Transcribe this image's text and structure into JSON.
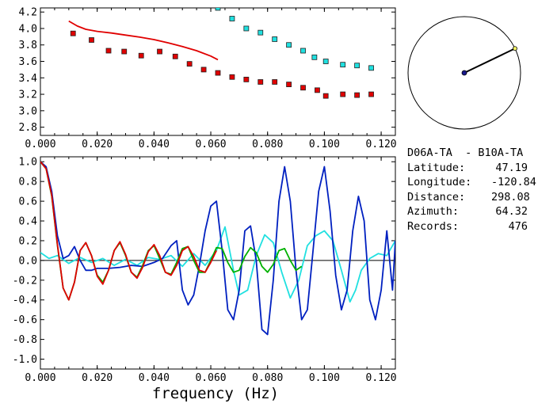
{
  "station_pair": "D06A-TA  - B10A-TA",
  "info_rows": [
    {
      "label": "Latitude:",
      "value": "47.19"
    },
    {
      "label": "Longitude:",
      "value": "-120.84"
    },
    {
      "label": "Distance:",
      "value": "298.08"
    },
    {
      "label": "Azimuth:",
      "value": "64.32"
    },
    {
      "label": "Records:",
      "value": "476"
    }
  ],
  "colors": {
    "red": "#e00000",
    "blue": "#0020c0",
    "cyan": "#20e0e0",
    "green": "#00b000",
    "compass_dot": "#1a1a8c",
    "compass_tip": "#ffff66"
  },
  "chart_data": [
    {
      "type": "scatter",
      "panel": "top",
      "xlim": [
        0.0,
        0.125
      ],
      "ylim": [
        2.7,
        4.25
      ],
      "xticks": [
        "0.000",
        "0.020",
        "0.040",
        "0.060",
        "0.080",
        "0.100",
        "0.120"
      ],
      "yticks": [
        "2.8",
        "3.0",
        "3.2",
        "3.4",
        "3.6",
        "3.8",
        "4.0",
        "4.2"
      ],
      "series": [
        {
          "kind": "markers",
          "color": "red",
          "points": [
            [
              0.0115,
              3.94
            ],
            [
              0.018,
              3.86
            ],
            [
              0.024,
              3.73
            ],
            [
              0.0295,
              3.72
            ],
            [
              0.0355,
              3.67
            ],
            [
              0.042,
              3.72
            ],
            [
              0.0475,
              3.66
            ],
            [
              0.0525,
              3.57
            ],
            [
              0.0575,
              3.5
            ],
            [
              0.0625,
              3.46
            ],
            [
              0.0675,
              3.41
            ],
            [
              0.0725,
              3.38
            ],
            [
              0.0775,
              3.35
            ],
            [
              0.0825,
              3.35
            ],
            [
              0.0875,
              3.32
            ],
            [
              0.0925,
              3.28
            ],
            [
              0.0975,
              3.25
            ],
            [
              0.1005,
              3.18
            ],
            [
              0.1065,
              3.2
            ],
            [
              0.1115,
              3.19
            ],
            [
              0.1165,
              3.2
            ]
          ]
        },
        {
          "kind": "markers",
          "color": "cyan",
          "points": [
            [
              0.0625,
              4.25
            ],
            [
              0.0675,
              4.12
            ],
            [
              0.0725,
              4.0
            ],
            [
              0.0775,
              3.95
            ],
            [
              0.0825,
              3.87
            ],
            [
              0.0875,
              3.8
            ],
            [
              0.0925,
              3.73
            ],
            [
              0.0965,
              3.65
            ],
            [
              0.1005,
              3.6
            ],
            [
              0.1065,
              3.56
            ],
            [
              0.1115,
              3.55
            ],
            [
              0.1165,
              3.52
            ]
          ]
        },
        {
          "kind": "line",
          "color": "red",
          "points": [
            [
              0.01,
              4.09
            ],
            [
              0.013,
              4.03
            ],
            [
              0.016,
              3.99
            ],
            [
              0.02,
              3.965
            ],
            [
              0.025,
              3.945
            ],
            [
              0.03,
              3.92
            ],
            [
              0.035,
              3.895
            ],
            [
              0.04,
              3.865
            ],
            [
              0.045,
              3.825
            ],
            [
              0.05,
              3.78
            ],
            [
              0.055,
              3.73
            ],
            [
              0.06,
              3.665
            ],
            [
              0.0625,
              3.62
            ]
          ]
        }
      ]
    },
    {
      "type": "line",
      "panel": "bottom",
      "xlim": [
        0.0,
        0.125
      ],
      "ylim": [
        -1.1,
        1.05
      ],
      "xticks": [
        "0.000",
        "0.020",
        "0.040",
        "0.060",
        "0.080",
        "0.100",
        "0.120"
      ],
      "yticks": [
        "-1.0",
        "-0.8",
        "-0.6",
        "-0.4",
        "-0.2",
        "0.0",
        "0.2",
        "0.4",
        "0.6",
        "0.8",
        "1.0"
      ],
      "xlabel": "frequency (Hz)",
      "series": [
        {
          "color": "cyan",
          "points": [
            [
              0.0,
              0.08
            ],
            [
              0.003,
              0.02
            ],
            [
              0.006,
              0.05
            ],
            [
              0.01,
              -0.03
            ],
            [
              0.014,
              0.03
            ],
            [
              0.018,
              -0.02
            ],
            [
              0.022,
              0.02
            ],
            [
              0.026,
              -0.05
            ],
            [
              0.03,
              0.01
            ],
            [
              0.034,
              -0.05
            ],
            [
              0.038,
              0.03
            ],
            [
              0.042,
              0.01
            ],
            [
              0.046,
              0.05
            ],
            [
              0.05,
              -0.06
            ],
            [
              0.054,
              0.07
            ],
            [
              0.058,
              -0.05
            ],
            [
              0.062,
              0.1
            ],
            [
              0.065,
              0.34
            ],
            [
              0.068,
              -0.1
            ],
            [
              0.07,
              -0.35
            ],
            [
              0.073,
              -0.3
            ],
            [
              0.076,
              0.05
            ],
            [
              0.079,
              0.26
            ],
            [
              0.082,
              0.18
            ],
            [
              0.085,
              -0.12
            ],
            [
              0.088,
              -0.38
            ],
            [
              0.091,
              -0.2
            ],
            [
              0.094,
              0.15
            ],
            [
              0.097,
              0.25
            ],
            [
              0.1,
              0.3
            ],
            [
              0.103,
              0.2
            ],
            [
              0.106,
              -0.1
            ],
            [
              0.109,
              -0.42
            ],
            [
              0.111,
              -0.3
            ],
            [
              0.113,
              -0.1
            ],
            [
              0.116,
              0.02
            ],
            [
              0.119,
              0.07
            ],
            [
              0.122,
              0.05
            ],
            [
              0.125,
              0.2
            ]
          ]
        },
        {
          "color": "blue",
          "points": [
            [
              0.0,
              1.0
            ],
            [
              0.002,
              0.95
            ],
            [
              0.004,
              0.7
            ],
            [
              0.006,
              0.25
            ],
            [
              0.008,
              0.02
            ],
            [
              0.01,
              0.05
            ],
            [
              0.012,
              0.14
            ],
            [
              0.014,
              0.0
            ],
            [
              0.016,
              -0.1
            ],
            [
              0.018,
              -0.1
            ],
            [
              0.02,
              -0.08
            ],
            [
              0.024,
              -0.08
            ],
            [
              0.028,
              -0.07
            ],
            [
              0.032,
              -0.05
            ],
            [
              0.036,
              -0.06
            ],
            [
              0.04,
              -0.02
            ],
            [
              0.043,
              0.02
            ],
            [
              0.046,
              0.15
            ],
            [
              0.048,
              0.2
            ],
            [
              0.05,
              -0.3
            ],
            [
              0.052,
              -0.45
            ],
            [
              0.054,
              -0.35
            ],
            [
              0.056,
              -0.05
            ],
            [
              0.058,
              0.3
            ],
            [
              0.06,
              0.55
            ],
            [
              0.062,
              0.6
            ],
            [
              0.064,
              0.1
            ],
            [
              0.066,
              -0.5
            ],
            [
              0.068,
              -0.6
            ],
            [
              0.07,
              -0.3
            ],
            [
              0.072,
              0.3
            ],
            [
              0.074,
              0.35
            ],
            [
              0.076,
              0.0
            ],
            [
              0.078,
              -0.7
            ],
            [
              0.08,
              -0.75
            ],
            [
              0.082,
              -0.2
            ],
            [
              0.084,
              0.6
            ],
            [
              0.086,
              0.95
            ],
            [
              0.088,
              0.6
            ],
            [
              0.09,
              -0.1
            ],
            [
              0.092,
              -0.6
            ],
            [
              0.094,
              -0.5
            ],
            [
              0.096,
              0.1
            ],
            [
              0.098,
              0.7
            ],
            [
              0.1,
              0.95
            ],
            [
              0.102,
              0.5
            ],
            [
              0.104,
              -0.15
            ],
            [
              0.106,
              -0.5
            ],
            [
              0.108,
              -0.3
            ],
            [
              0.11,
              0.3
            ],
            [
              0.112,
              0.65
            ],
            [
              0.114,
              0.4
            ],
            [
              0.116,
              -0.4
            ],
            [
              0.118,
              -0.6
            ],
            [
              0.12,
              -0.3
            ],
            [
              0.122,
              0.3
            ],
            [
              0.124,
              -0.3
            ],
            [
              0.125,
              0.2
            ]
          ]
        },
        {
          "color": "green",
          "points": [
            [
              0.0,
              1.0
            ],
            [
              0.002,
              0.93
            ],
            [
              0.004,
              0.65
            ],
            [
              0.006,
              0.15
            ],
            [
              0.008,
              -0.28
            ],
            [
              0.01,
              -0.4
            ],
            [
              0.012,
              -0.22
            ],
            [
              0.014,
              0.1
            ],
            [
              0.016,
              0.18
            ],
            [
              0.018,
              0.05
            ],
            [
              0.02,
              -0.15
            ],
            [
              0.022,
              -0.22
            ],
            [
              0.024,
              -0.1
            ],
            [
              0.026,
              0.1
            ],
            [
              0.028,
              0.18
            ],
            [
              0.03,
              0.05
            ],
            [
              0.032,
              -0.12
            ],
            [
              0.034,
              -0.17
            ],
            [
              0.036,
              -0.05
            ],
            [
              0.038,
              0.1
            ],
            [
              0.04,
              0.15
            ],
            [
              0.042,
              0.02
            ],
            [
              0.044,
              -0.12
            ],
            [
              0.046,
              -0.14
            ],
            [
              0.048,
              -0.02
            ],
            [
              0.05,
              0.12
            ],
            [
              0.052,
              0.14
            ],
            [
              0.054,
              0.0
            ],
            [
              0.056,
              -0.12
            ],
            [
              0.058,
              -0.12
            ],
            [
              0.06,
              0.0
            ],
            [
              0.062,
              0.13
            ],
            [
              0.064,
              0.12
            ],
            [
              0.066,
              -0.02
            ],
            [
              0.068,
              -0.12
            ],
            [
              0.07,
              -0.1
            ],
            [
              0.072,
              0.04
            ],
            [
              0.074,
              0.13
            ],
            [
              0.076,
              0.08
            ],
            [
              0.078,
              -0.06
            ],
            [
              0.08,
              -0.12
            ],
            [
              0.082,
              -0.04
            ],
            [
              0.084,
              0.1
            ],
            [
              0.086,
              0.12
            ],
            [
              0.088,
              0.0
            ],
            [
              0.09,
              -0.1
            ],
            [
              0.092,
              -0.06
            ]
          ]
        },
        {
          "color": "red",
          "points": [
            [
              0.0,
              1.0
            ],
            [
              0.002,
              0.93
            ],
            [
              0.004,
              0.66
            ],
            [
              0.006,
              0.16
            ],
            [
              0.008,
              -0.28
            ],
            [
              0.01,
              -0.4
            ],
            [
              0.012,
              -0.22
            ],
            [
              0.014,
              0.1
            ],
            [
              0.016,
              0.18
            ],
            [
              0.018,
              0.05
            ],
            [
              0.02,
              -0.16
            ],
            [
              0.022,
              -0.24
            ],
            [
              0.024,
              -0.1
            ],
            [
              0.026,
              0.1
            ],
            [
              0.028,
              0.19
            ],
            [
              0.03,
              0.06
            ],
            [
              0.032,
              -0.12
            ],
            [
              0.034,
              -0.18
            ],
            [
              0.036,
              -0.07
            ],
            [
              0.038,
              0.09
            ],
            [
              0.04,
              0.16
            ],
            [
              0.042,
              0.05
            ],
            [
              0.044,
              -0.12
            ],
            [
              0.046,
              -0.15
            ],
            [
              0.048,
              -0.05
            ],
            [
              0.05,
              0.1
            ],
            [
              0.052,
              0.14
            ],
            [
              0.054,
              0.04
            ],
            [
              0.056,
              -0.1
            ],
            [
              0.058,
              -0.12
            ],
            [
              0.06,
              -0.02
            ],
            [
              0.062,
              0.1
            ]
          ]
        }
      ]
    }
  ],
  "compass": {
    "azimuth_deg": 64.32
  }
}
